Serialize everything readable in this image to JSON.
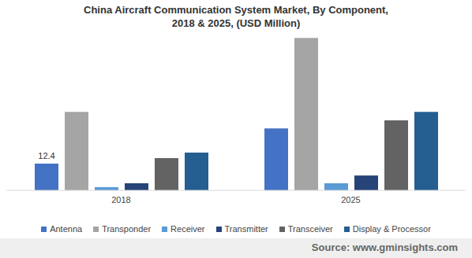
{
  "chart_data": {
    "type": "bar",
    "title": "China Aircraft Communication System Market, By Component, 2018 & 2025, (USD Million)",
    "source": "Source: www.gminsights.com",
    "categories": [
      "2018",
      "2025"
    ],
    "series": [
      {
        "name": "Antenna",
        "color": "#4472c4",
        "values": [
          12.4,
          28.8
        ],
        "value_labels": [
          "12.4",
          null
        ]
      },
      {
        "name": "Transponder",
        "color": "#a5a5a5",
        "values": [
          36.5,
          70.8
        ]
      },
      {
        "name": "Receiver",
        "color": "#5b9bd5",
        "values": [
          1.5,
          3.3
        ]
      },
      {
        "name": "Transmitter",
        "color": "#264478",
        "values": [
          3.3,
          6.9
        ]
      },
      {
        "name": "Transceiver",
        "color": "#636363",
        "values": [
          15.0,
          32.5
        ]
      },
      {
        "name": "Display & Processor",
        "color": "#255e91",
        "values": [
          17.5,
          36.5
        ]
      }
    ],
    "ylim": [
      0,
      72
    ],
    "tick_labels": "x",
    "grid": false
  }
}
